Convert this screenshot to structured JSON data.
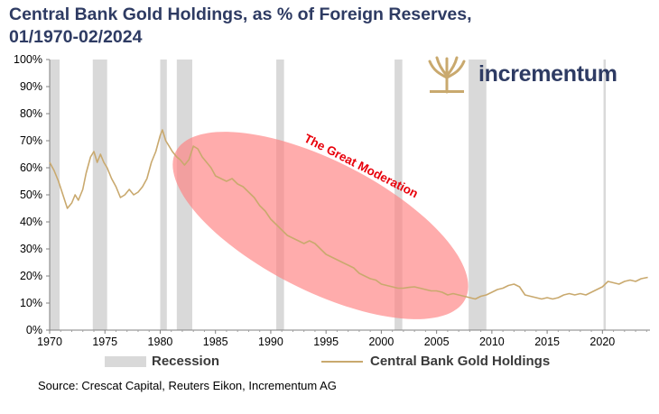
{
  "title_line1": "Central Bank Gold Holdings, as % of Foreign Reserves,",
  "title_line2": "01/1970-02/2024",
  "logo_text": "incrementum",
  "source": "Source: Crescat Capital, Reuters Eikon, Incrementum AG",
  "colors": {
    "title": "#2e3b63",
    "line": "#c9a96e",
    "recession": "#d9d9d9",
    "ellipse": "#ff8080",
    "annotation": "#e8000b",
    "logo": "#c9a96e"
  },
  "chart_data": {
    "type": "line",
    "xlim": [
      1970.0,
      2024.3
    ],
    "ylim": [
      0,
      100
    ],
    "y_ticks": [
      0,
      10,
      20,
      30,
      40,
      50,
      60,
      70,
      80,
      90,
      100
    ],
    "y_tick_labels": [
      "0%",
      "10%",
      "20%",
      "30%",
      "40%",
      "50%",
      "60%",
      "70%",
      "80%",
      "90%",
      "100%"
    ],
    "x_ticks": [
      1970,
      1975,
      1980,
      1985,
      1990,
      1995,
      2000,
      2005,
      2010,
      2015,
      2020
    ],
    "x_tick_labels": [
      "1970",
      "1975",
      "1980",
      "1985",
      "1990",
      "1995",
      "2000",
      "2005",
      "2010",
      "2015",
      "2020"
    ],
    "legend": {
      "placement": "bottom",
      "recession_label": "Recession",
      "series_label": "Central Bank Gold Holdings"
    },
    "annotation": {
      "text": "The Great Moderation"
    },
    "recessions": [
      [
        1970.0,
        1970.9
      ],
      [
        1973.9,
        1975.2
      ],
      [
        1980.0,
        1980.6
      ],
      [
        1981.5,
        1982.9
      ],
      [
        1990.5,
        1991.2
      ],
      [
        2001.2,
        2001.9
      ],
      [
        2007.9,
        2009.5
      ],
      [
        2020.1,
        2020.3
      ]
    ],
    "series": [
      {
        "name": "Central Bank Gold Holdings",
        "x": [
          1970.0,
          1970.4,
          1970.8,
          1971.2,
          1971.6,
          1972.0,
          1972.3,
          1972.6,
          1973.0,
          1973.3,
          1973.7,
          1974.0,
          1974.3,
          1974.6,
          1974.9,
          1975.2,
          1975.6,
          1976.0,
          1976.4,
          1976.8,
          1977.2,
          1977.6,
          1978.0,
          1978.4,
          1978.8,
          1979.2,
          1979.6,
          1980.0,
          1980.2,
          1980.5,
          1980.8,
          1981.1,
          1981.5,
          1981.8,
          1982.2,
          1982.6,
          1983.0,
          1983.4,
          1983.8,
          1984.2,
          1984.6,
          1985.0,
          1985.5,
          1986.0,
          1986.5,
          1987.0,
          1987.5,
          1988.0,
          1988.5,
          1989.0,
          1989.5,
          1990.0,
          1990.5,
          1991.0,
          1991.5,
          1992.0,
          1992.5,
          1993.0,
          1993.5,
          1994.0,
          1994.5,
          1995.0,
          1995.5,
          1996.0,
          1996.5,
          1997.0,
          1997.5,
          1998.0,
          1998.5,
          1999.0,
          1999.5,
          2000.0,
          2000.5,
          2001.0,
          2001.5,
          2002.0,
          2002.5,
          2003.0,
          2003.5,
          2004.0,
          2004.5,
          2005.0,
          2005.5,
          2006.0,
          2006.5,
          2007.0,
          2007.5,
          2008.0,
          2008.5,
          2009.0,
          2009.5,
          2010.0,
          2010.5,
          2011.0,
          2011.5,
          2012.0,
          2012.5,
          2013.0,
          2013.5,
          2014.0,
          2014.5,
          2015.0,
          2015.5,
          2016.0,
          2016.5,
          2017.0,
          2017.5,
          2018.0,
          2018.5,
          2019.0,
          2019.5,
          2020.0,
          2020.5,
          2021.0,
          2021.5,
          2022.0,
          2022.5,
          2023.0,
          2023.5,
          2024.1
        ],
        "values": [
          62,
          59,
          55,
          50,
          45,
          47,
          50,
          48,
          52,
          58,
          64,
          66,
          62,
          65,
          62,
          60,
          56,
          53,
          49,
          50,
          52,
          50,
          51,
          53,
          56,
          62,
          66,
          72,
          74,
          70,
          68,
          66,
          64,
          63,
          61,
          63,
          68,
          67,
          64,
          62,
          60,
          57,
          56,
          55,
          56,
          54,
          53,
          51,
          49,
          46,
          44,
          41,
          39,
          37,
          35,
          34,
          33,
          32,
          33,
          32,
          30,
          28,
          27,
          26,
          25,
          24,
          23,
          21,
          20,
          19,
          18.5,
          17,
          16.5,
          16,
          15.5,
          15.5,
          15.8,
          16,
          15.5,
          15,
          14.5,
          14.5,
          14,
          13,
          13.5,
          13,
          12.5,
          12,
          11.5,
          12.5,
          13,
          14,
          15,
          15.5,
          16.5,
          17,
          16,
          13,
          12.5,
          12,
          11.5,
          12,
          11.5,
          12,
          13,
          13.5,
          13,
          13.5,
          13,
          14,
          15,
          16,
          18,
          17.5,
          17,
          18,
          18.5,
          18,
          19,
          19.5
        ]
      }
    ]
  }
}
